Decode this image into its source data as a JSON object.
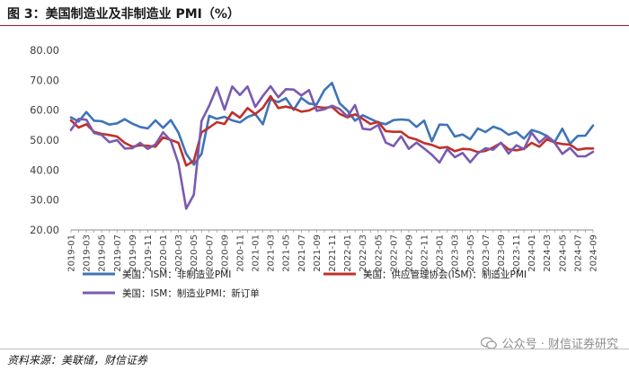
{
  "header": {
    "title": "图 3：美国制造业及非制造业 PMI（%）"
  },
  "footer": {
    "source": "资料来源：美联储，财信证券",
    "watermark": "公众号 · 财信证券研究"
  },
  "colors": {
    "series1": "#3e74b8",
    "series2": "#c0302a",
    "series3": "#7a5ab0",
    "title_rule": "#9e1b20"
  },
  "chart_data": {
    "type": "line",
    "title": "美国制造业及非制造业 PMI（%）",
    "ylim": [
      20,
      80
    ],
    "yticks": [
      "20.00",
      "30.00",
      "40.00",
      "50.00",
      "60.00",
      "70.00",
      "80.00"
    ],
    "xticks": [
      "2019-01",
      "2019-03",
      "2019-05",
      "2019-07",
      "2019-09",
      "2019-11",
      "2020-01",
      "2020-03",
      "2020-05",
      "2020-07",
      "2020-09",
      "2020-11",
      "2021-01",
      "2021-03",
      "2021-05",
      "2021-07",
      "2021-09",
      "2021-11",
      "2022-01",
      "2022-03",
      "2022-05",
      "2022-07",
      "2022-09",
      "2022-11",
      "2023-01",
      "2023-03",
      "2023-05",
      "2023-07",
      "2023-09",
      "2023-11",
      "2024-01",
      "2024-03",
      "2024-05",
      "2024-07",
      "2024-09"
    ],
    "x_start": "2019-01",
    "x_end": "2024-09",
    "grid": false,
    "legend_position": "bottom",
    "series": [
      {
        "name": "美国：ISM：非制造业PMI",
        "values": [
          57.6,
          56.2,
          59.4,
          56.5,
          56.3,
          55.2,
          55.6,
          57.0,
          55.5,
          54.4,
          53.9,
          56.6,
          54.1,
          56.7,
          52.5,
          45.4,
          41.8,
          45.4,
          58.1,
          57.1,
          57.8,
          56.6,
          55.9,
          57.7,
          58.7,
          55.3,
          63.7,
          62.7,
          64.0,
          60.1,
          64.1,
          62.2,
          61.9,
          66.7,
          69.1,
          62.3,
          59.9,
          56.5,
          58.3,
          57.1,
          55.9,
          55.3,
          56.7,
          56.9,
          56.7,
          54.4,
          56.5,
          49.6,
          55.2,
          55.1,
          51.2,
          51.9,
          50.3,
          53.9,
          52.7,
          54.5,
          53.6,
          51.8,
          52.7,
          50.5,
          53.4,
          52.6,
          51.4,
          49.4,
          53.8,
          48.8,
          51.4,
          51.5,
          54.9
        ]
      },
      {
        "name": "美国：供应管理协会(ISM)：制造业PMI",
        "values": [
          56.6,
          54.2,
          55.3,
          52.8,
          52.1,
          51.7,
          51.2,
          49.1,
          47.8,
          48.3,
          48.1,
          47.8,
          50.9,
          50.1,
          49.1,
          41.5,
          43.1,
          52.6,
          54.2,
          56.0,
          55.4,
          59.3,
          57.5,
          60.7,
          58.7,
          60.8,
          64.7,
          60.7,
          61.2,
          60.6,
          59.5,
          59.9,
          61.1,
          60.8,
          61.1,
          58.8,
          57.6,
          58.6,
          57.1,
          55.4,
          56.1,
          53.0,
          52.8,
          52.8,
          50.9,
          50.2,
          49.0,
          48.4,
          47.4,
          47.7,
          46.3,
          47.1,
          46.9,
          46.0,
          46.4,
          47.6,
          49.0,
          46.9,
          46.6,
          47.1,
          49.1,
          47.8,
          50.3,
          49.2,
          48.7,
          48.5,
          46.8,
          47.2,
          47.2
        ]
      },
      {
        "name": "美国：ISM：制造业PMI：新订单",
        "values": [
          53.4,
          57.1,
          56.8,
          52.4,
          51.7,
          49.3,
          50.0,
          47.2,
          47.3,
          49.1,
          47.1,
          48.6,
          52.6,
          49.8,
          42.2,
          27.1,
          31.8,
          56.4,
          61.5,
          67.6,
          60.2,
          67.9,
          65.1,
          67.9,
          61.1,
          64.8,
          68.0,
          64.3,
          67.0,
          66.9,
          64.9,
          66.7,
          59.8,
          60.3,
          61.5,
          60.4,
          57.9,
          61.7,
          53.8,
          53.5,
          55.1,
          49.2,
          48.0,
          51.3,
          47.1,
          49.2,
          47.2,
          45.1,
          42.5,
          47.0,
          44.3,
          45.7,
          42.6,
          45.6,
          47.3,
          46.8,
          49.2,
          45.5,
          48.3,
          47.0,
          52.5,
          49.2,
          51.4,
          49.1,
          45.4,
          47.4,
          44.6,
          44.6,
          46.1
        ]
      }
    ]
  }
}
